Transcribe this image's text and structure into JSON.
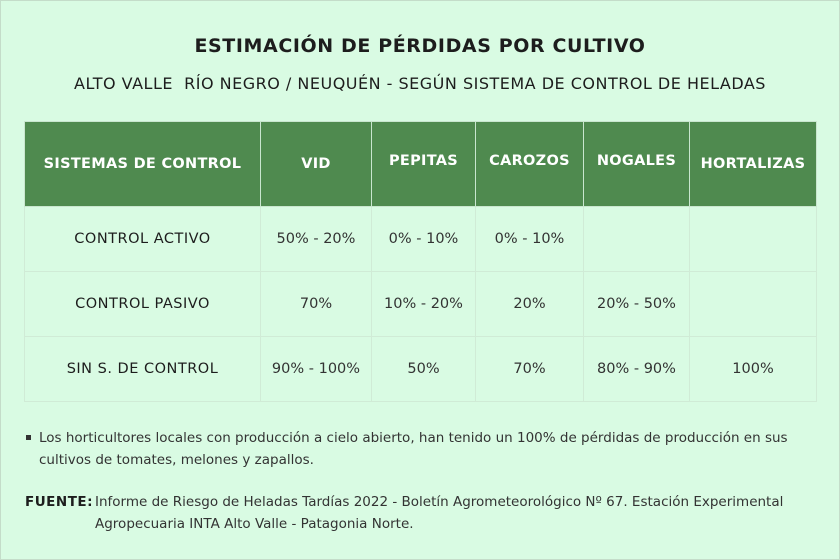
{
  "header": {
    "title": "ESTIMACIÓN DE PÉRDIDAS POR CULTIVO",
    "subtitle": "ALTO VALLE  RÍO NEGRO / NEUQUÉN - SEGÚN SISTEMA DE CONTROL DE HELADAS"
  },
  "table": {
    "columns": [
      "SISTEMAS DE CONTROL",
      "VID",
      "PEPITAS",
      "CAROZOS",
      "NOGALES",
      "HORTALIZAS"
    ],
    "rows": [
      [
        "CONTROL ACTIVO",
        "50% - 20%",
        "0% - 10%",
        "0% - 10%",
        "",
        ""
      ],
      [
        "CONTROL PASIVO",
        "70%",
        "10% - 20%",
        "20%",
        "20% - 50%",
        ""
      ],
      [
        "SIN S. DE CONTROL",
        "90% - 100%",
        "50%",
        "70%",
        "80% - 90%",
        "100%"
      ]
    ]
  },
  "note": {
    "text": "Los horticultores locales con producción a cielo abierto, han tenido un 100% de pérdidas de producción en sus cultivos de tomates, melones y zapallos."
  },
  "source": {
    "label": "FUENTE:",
    "text": "Informe de Riesgo de Heladas Tardías 2022 - Boletín Agrometeorológico Nº 67.  Estación Experimental Agropecuaria INTA Alto Valle - Patagonia Norte."
  }
}
